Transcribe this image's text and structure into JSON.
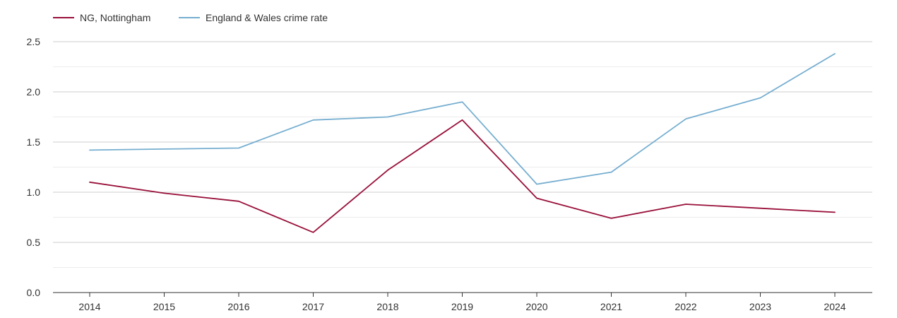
{
  "chart_data": {
    "type": "line",
    "title": "",
    "xlabel": "",
    "ylabel": "",
    "categories": [
      "2014",
      "2015",
      "2016",
      "2017",
      "2018",
      "2019",
      "2020",
      "2021",
      "2022",
      "2023",
      "2024"
    ],
    "ylim": [
      0,
      2.5
    ],
    "yticks": [
      0.0,
      0.5,
      1.0,
      1.5,
      2.0,
      2.5
    ],
    "ytick_labels": [
      "0.0",
      "0.5",
      "1.0",
      "1.5",
      "2.0",
      "2.5"
    ],
    "grid": true,
    "legend_position": "top-left",
    "series": [
      {
        "name": "NG, Nottingham",
        "color": "#99103a",
        "values": [
          1.1,
          0.99,
          0.91,
          0.6,
          1.22,
          1.72,
          0.94,
          0.74,
          0.88,
          0.84,
          0.8
        ]
      },
      {
        "name": "England & Wales crime rate",
        "color": "#76aed0",
        "values": [
          1.42,
          1.43,
          1.44,
          1.72,
          1.75,
          1.9,
          1.08,
          1.2,
          1.73,
          1.94,
          2.38
        ]
      }
    ]
  }
}
